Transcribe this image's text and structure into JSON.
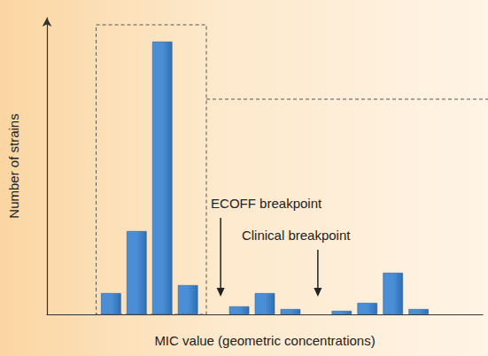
{
  "chart_data": {
    "type": "bar",
    "x_label": "MIC value (geometric concentrations)",
    "y_label": "Number of strains",
    "categories": [
      null,
      null,
      null,
      null,
      null,
      null,
      null,
      null,
      null,
      null,
      null,
      null,
      null,
      null,
      null,
      null,
      null
    ],
    "values": [
      null,
      null,
      24,
      94,
      308,
      33,
      null,
      9,
      24,
      6,
      null,
      4,
      13,
      47,
      6,
      null,
      null
    ],
    "color": "#4a8fd6",
    "ylim": [
      0,
      335
    ],
    "tick_labels": false,
    "grid": false,
    "annotations": [
      {
        "text": "ECOFF breakpoint",
        "x": 6
      },
      {
        "text": "Clinical breakpoint",
        "x": 10
      }
    ]
  }
}
